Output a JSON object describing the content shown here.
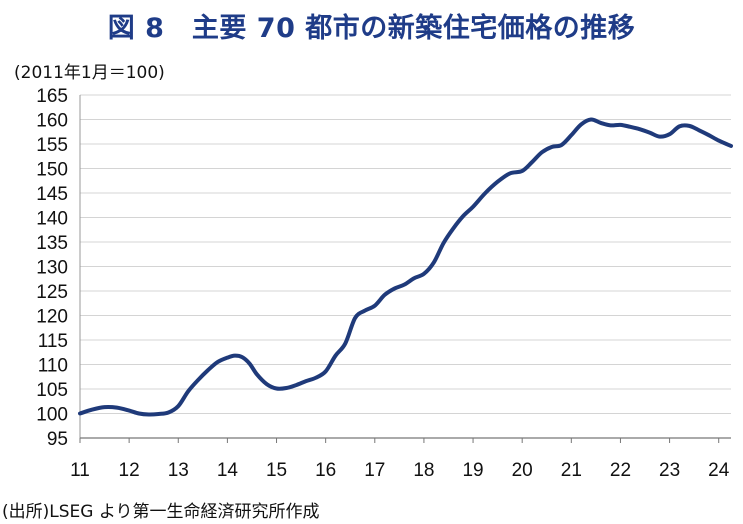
{
  "chart_data": {
    "type": "line",
    "title": "図 8　主要 70 都市の新築住宅価格の推移",
    "unit_label": "(2011年1月＝100)",
    "source": "(出所)LSEG より第一生命経済研究所作成",
    "ylim": [
      95,
      165
    ],
    "y_ticks": [
      "95",
      "100",
      "105",
      "110",
      "115",
      "120",
      "125",
      "130",
      "135",
      "140",
      "145",
      "150",
      "155",
      "160",
      "165"
    ],
    "xlim": [
      2011.0,
      2024.25
    ],
    "x_ticks": [
      "11",
      "12",
      "13",
      "14",
      "15",
      "16",
      "17",
      "18",
      "19",
      "20",
      "21",
      "22",
      "23",
      "24"
    ],
    "grid": "horizontal",
    "line_color": "#1f3a7a",
    "series": [
      {
        "x": [
          2011.0,
          2011.25,
          2011.5,
          2011.75,
          2012.0,
          2012.2,
          2012.4,
          2012.6,
          2012.8,
          2013.0,
          2013.2,
          2013.4,
          2013.6,
          2013.8,
          2014.0,
          2014.15,
          2014.3,
          2014.45,
          2014.6,
          2014.8,
          2015.0,
          2015.2,
          2015.4,
          2015.6,
          2015.8,
          2016.0,
          2016.2,
          2016.4,
          2016.6,
          2016.8,
          2017.0,
          2017.2,
          2017.4,
          2017.6,
          2017.8,
          2018.0,
          2018.2,
          2018.4,
          2018.6,
          2018.8,
          2019.0,
          2019.25,
          2019.5,
          2019.75,
          2020.0,
          2020.2,
          2020.4,
          2020.6,
          2020.8,
          2021.0,
          2021.2,
          2021.4,
          2021.6,
          2021.8,
          2022.0,
          2022.2,
          2022.4,
          2022.6,
          2022.8,
          2023.0,
          2023.2,
          2023.4,
          2023.6,
          2023.8,
          2024.0,
          2024.25
        ],
        "y": [
          100.0,
          100.8,
          101.3,
          101.2,
          100.6,
          100.0,
          99.8,
          99.9,
          100.2,
          101.5,
          104.5,
          106.8,
          108.8,
          110.5,
          111.4,
          111.8,
          111.5,
          110.2,
          108.0,
          106.0,
          105.1,
          105.2,
          105.8,
          106.6,
          107.3,
          108.6,
          111.8,
          114.3,
          119.5,
          121.0,
          122.0,
          124.2,
          125.5,
          126.3,
          127.6,
          128.5,
          130.8,
          134.8,
          137.8,
          140.3,
          142.2,
          145.0,
          147.3,
          149.0,
          149.5,
          151.3,
          153.3,
          154.4,
          154.8,
          156.8,
          159.0,
          160.0,
          159.3,
          158.8,
          158.9,
          158.5,
          158.0,
          157.3,
          156.5,
          157.0,
          158.6,
          158.7,
          157.8,
          156.8,
          155.7,
          154.6
        ]
      }
    ]
  }
}
